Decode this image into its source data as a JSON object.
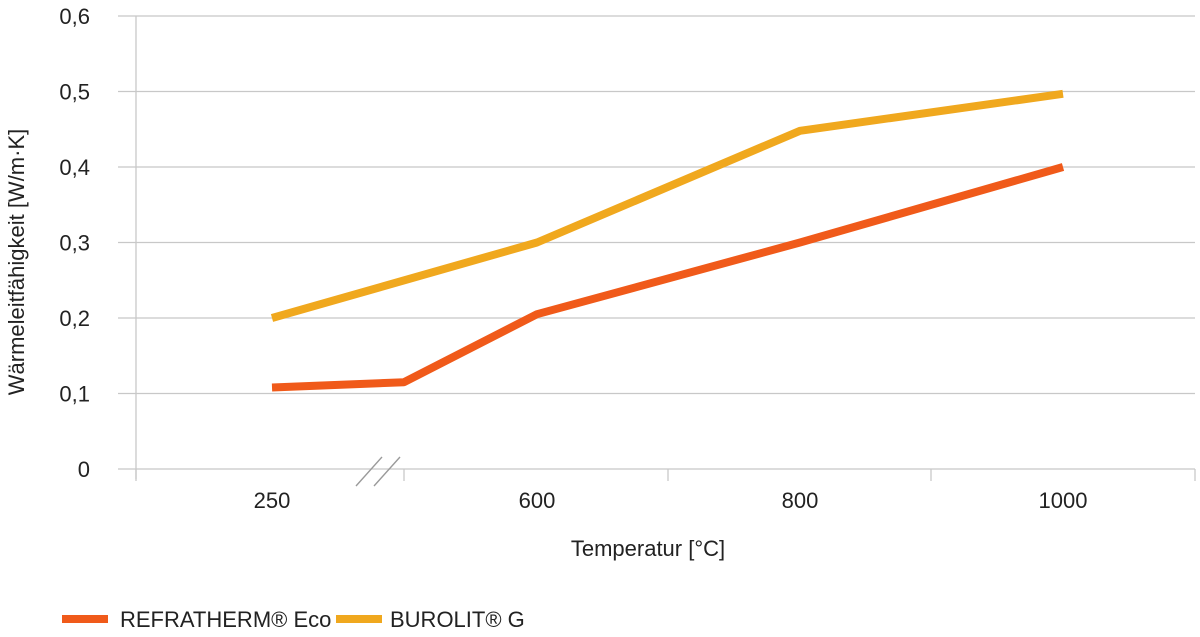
{
  "chart_data": {
    "type": "line",
    "xlabel": "Temperatur [°C]",
    "ylabel": "Wärmeleitfähigkeit [W/m·K]",
    "ylim": [
      0,
      0.6
    ],
    "yticks": [
      "0",
      "0,1",
      "0,2",
      "0,3",
      "0,4",
      "0,5",
      "0,6"
    ],
    "xticks": [
      "250",
      "600",
      "800",
      "1000"
    ],
    "grid": true,
    "axis_break": true,
    "legend_position": "bottom-left",
    "series": [
      {
        "name": "REFRATHERM® Eco",
        "color": "#f05a1a",
        "points": [
          {
            "x": "250",
            "y": 0.108
          },
          {
            "x": "break",
            "y": 0.115
          },
          {
            "x": "600",
            "y": 0.205
          },
          {
            "x": "800",
            "y": 0.3
          },
          {
            "x": "1000",
            "y": 0.4
          }
        ]
      },
      {
        "name": "BUROLIT® G",
        "color": "#f0a81e",
        "points": [
          {
            "x": "250",
            "y": 0.2
          },
          {
            "x": "600",
            "y": 0.3
          },
          {
            "x": "800",
            "y": 0.448
          },
          {
            "x": "1000",
            "y": 0.497
          }
        ]
      }
    ]
  }
}
